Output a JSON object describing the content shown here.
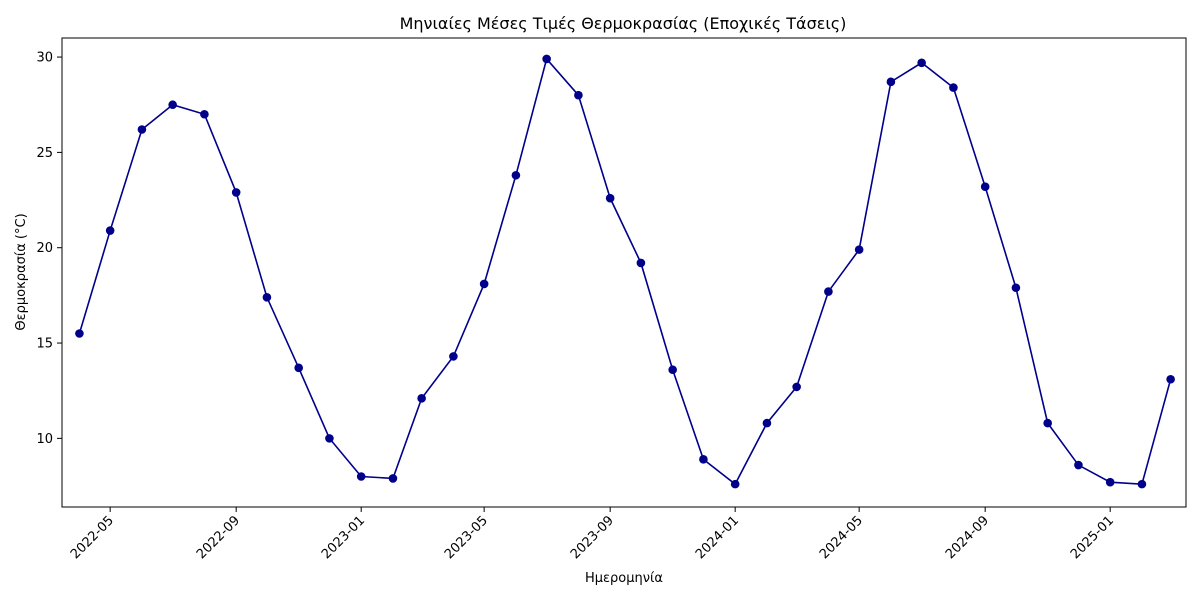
{
  "chart_data": {
    "type": "line",
    "title": "Μηνιαίες Μέσες Τιμές Θερμοκρασίας (Εποχικές Τάσεις)",
    "xlabel": "Ημερομηνία",
    "ylabel": "Θερμοκρασία (°C)",
    "x_range": [
      "2022-03-15",
      "2025-03-16"
    ],
    "ylim": [
      6.4,
      31.0
    ],
    "x_ticks": [
      "2022-05",
      "2022-09",
      "2023-01",
      "2023-05",
      "2023-09",
      "2024-01",
      "2024-05",
      "2024-09",
      "2025-01"
    ],
    "y_ticks": [
      10,
      15,
      20,
      25,
      30
    ],
    "grid": false,
    "color": "#00008b",
    "marker": "circle",
    "series": [
      {
        "x": [
          "2022-04-01",
          "2022-05-01",
          "2022-06-01",
          "2022-07-01",
          "2022-08-01",
          "2022-09-01",
          "2022-10-01",
          "2022-11-01",
          "2022-12-01",
          "2023-01-01",
          "2023-02-01",
          "2023-03-01",
          "2023-04-01",
          "2023-05-01",
          "2023-06-01",
          "2023-07-01",
          "2023-08-01",
          "2023-09-01",
          "2023-10-01",
          "2023-11-01",
          "2023-12-01",
          "2024-01-01",
          "2024-02-01",
          "2024-03-01",
          "2024-04-01",
          "2024-05-01",
          "2024-06-01",
          "2024-07-01",
          "2024-08-01",
          "2024-09-01",
          "2024-10-01",
          "2024-11-01",
          "2024-12-01",
          "2025-01-01",
          "2025-02-01",
          "2025-03-01"
        ],
        "y": [
          15.5,
          20.9,
          26.2,
          27.5,
          27.0,
          22.9,
          17.4,
          13.7,
          10.0,
          8.0,
          7.9,
          12.1,
          14.3,
          18.1,
          23.8,
          29.9,
          28.0,
          22.6,
          19.2,
          13.6,
          8.9,
          7.6,
          10.8,
          12.7,
          17.7,
          19.9,
          28.7,
          29.7,
          28.4,
          23.2,
          17.9,
          10.8,
          8.6,
          7.7,
          7.6,
          13.1
        ]
      }
    ]
  }
}
